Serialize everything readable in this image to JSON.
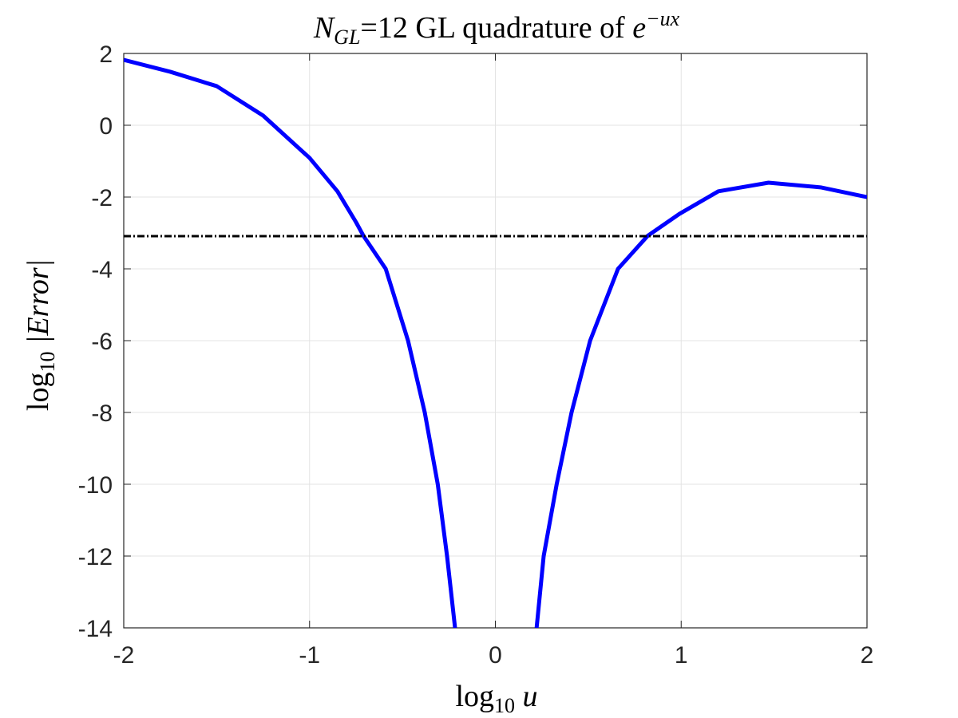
{
  "chart_data": {
    "type": "line",
    "title": [
      "N",
      "GL",
      "=12 GL quadrature of ",
      "e",
      "−ux"
    ],
    "x_label": [
      "log",
      "10",
      " u"
    ],
    "y_label": [
      "log",
      "10",
      " |Error|"
    ],
    "xlim": [
      -2,
      2
    ],
    "ylim": [
      -14,
      2
    ],
    "xticks": [
      -2,
      -1,
      0,
      1,
      2
    ],
    "yticks": [
      -14,
      -12,
      -10,
      -8,
      -6,
      -4,
      -2,
      0,
      2
    ],
    "grid": true,
    "series": [
      {
        "color": "#0000ff",
        "style": "solid",
        "x": [
          -2,
          -1.75,
          -1.5,
          -1.25,
          -1,
          -0.85,
          -0.75,
          -0.71,
          -0.59,
          -0.47,
          -0.38,
          -0.31,
          -0.26,
          -0.217,
          0,
          0.222,
          0.26,
          0.33,
          0.41,
          0.51,
          0.66,
          0.82,
          0.99,
          1.2,
          1.47,
          1.75,
          2
        ],
        "values": [
          1.82,
          1.49,
          1.09,
          0.27,
          -0.91,
          -1.84,
          -2.7,
          -3.08,
          -4,
          -6,
          -8,
          -10,
          -12,
          -14,
          null,
          -14,
          -12,
          -10,
          -8,
          -6,
          -4,
          -3.08,
          -2.47,
          -1.84,
          -1.6,
          -1.73,
          -2
        ]
      },
      {
        "color": "#000000",
        "style": "dashdot",
        "x": [
          -2,
          2
        ],
        "values": [
          -3.09,
          -3.09
        ]
      }
    ]
  }
}
